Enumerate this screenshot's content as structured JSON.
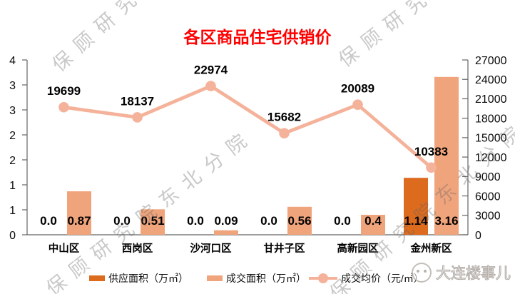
{
  "chart_data": {
    "type": "combo-bar-line",
    "title": "各区商品住宅供销价",
    "title_color": "#ff0000",
    "categories": [
      "中山区",
      "西岗区",
      "沙河口区",
      "甘井子区",
      "高新园区",
      "金州新区"
    ],
    "series": [
      {
        "name": "供应面积（万㎡）",
        "type": "bar",
        "axis": "left",
        "color": "#DC6B1E",
        "values": [
          0.0,
          0.0,
          0.0,
          0.0,
          0.0,
          1.14
        ],
        "labels": [
          "0.0",
          "0.0",
          "0.0",
          "0.0",
          "0.0",
          "1.14"
        ]
      },
      {
        "name": "成交面积（万㎡）",
        "type": "bar",
        "axis": "left",
        "color": "#F0A47C",
        "values": [
          0.87,
          0.51,
          0.09,
          0.56,
          0.4,
          3.16
        ],
        "labels": [
          "0.87",
          "0.51",
          "0.09",
          "0.56",
          "0.4",
          "3.16"
        ]
      },
      {
        "name": "成交均价（元/㎡）",
        "type": "line",
        "axis": "right",
        "color": "#F5B29A",
        "values": [
          19699,
          18137,
          22974,
          15682,
          20089,
          10383
        ],
        "labels": [
          "19699",
          "18137",
          "22974",
          "15682",
          "20089",
          "10383"
        ]
      }
    ],
    "left_axis": {
      "min": 0,
      "max": 3.5,
      "step": 0.5,
      "label_style": "rounded-integer"
    },
    "right_axis": {
      "min": 0,
      "max": 27000,
      "step": 3000
    },
    "legend_position": "bottom",
    "grid": false
  },
  "watermark": {
    "text": "保顾研究院东北分院",
    "repeat_gap_spaces": 4
  },
  "brand": {
    "name": "大连楼事儿"
  }
}
